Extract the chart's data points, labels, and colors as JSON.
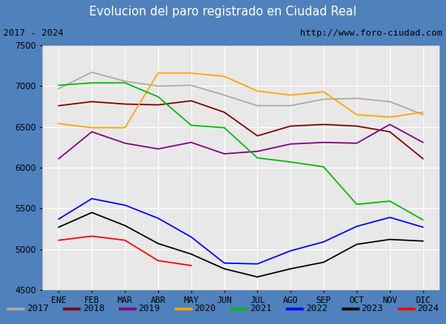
{
  "title": "Evolucion del paro registrado en Ciudad Real",
  "subtitle_left": "2017 - 2024",
  "subtitle_right": "http://www.foro-ciudad.com",
  "ylim": [
    4500,
    7500
  ],
  "months": [
    "ENE",
    "FEB",
    "MAR",
    "ABR",
    "MAY",
    "JUN",
    "JUL",
    "AGO",
    "SEP",
    "OCT",
    "NOV",
    "DIC"
  ],
  "series": {
    "2017": {
      "color": "#aaaaaa",
      "data": [
        6970,
        7170,
        7060,
        7000,
        7010,
        6890,
        6760,
        6760,
        6840,
        6850,
        6810,
        6650
      ]
    },
    "2018": {
      "color": "#800000",
      "data": [
        6760,
        6810,
        6780,
        6770,
        6820,
        6680,
        6390,
        6510,
        6530,
        6510,
        6440,
        6110
      ]
    },
    "2019": {
      "color": "#800080",
      "data": [
        6110,
        6440,
        6300,
        6230,
        6310,
        6170,
        6200,
        6290,
        6310,
        6300,
        6530,
        6310
      ]
    },
    "2020": {
      "color": "#ffa500",
      "data": [
        6540,
        6490,
        6490,
        7160,
        7160,
        7120,
        6940,
        6890,
        6930,
        6650,
        6620,
        6680
      ]
    },
    "2021": {
      "color": "#00bb00",
      "data": [
        7010,
        7040,
        7040,
        6870,
        6520,
        6490,
        6120,
        6070,
        6010,
        5550,
        5590,
        5360
      ]
    },
    "2022": {
      "color": "#0000ff",
      "data": [
        5370,
        5620,
        5540,
        5380,
        5150,
        4830,
        4820,
        4980,
        5090,
        5280,
        5390,
        5270
      ]
    },
    "2023": {
      "color": "#000000",
      "data": [
        5270,
        5450,
        5290,
        5070,
        4940,
        4760,
        4660,
        4760,
        4840,
        5060,
        5120,
        5100
      ]
    },
    "2024": {
      "color": "#ff0000",
      "data": [
        5110,
        5160,
        5110,
        4860,
        4800,
        null,
        null,
        null,
        null,
        null,
        null,
        null
      ]
    }
  },
  "title_bg_color": "#4f81bd",
  "title_text_color": "#ffffff",
  "subtitle_bg_color": "#e8e8e8",
  "plot_bg_color": "#e8e8e8",
  "grid_color": "#ffffff",
  "border_color": "#4f81bd",
  "fig_bg_color": "#4f81bd"
}
